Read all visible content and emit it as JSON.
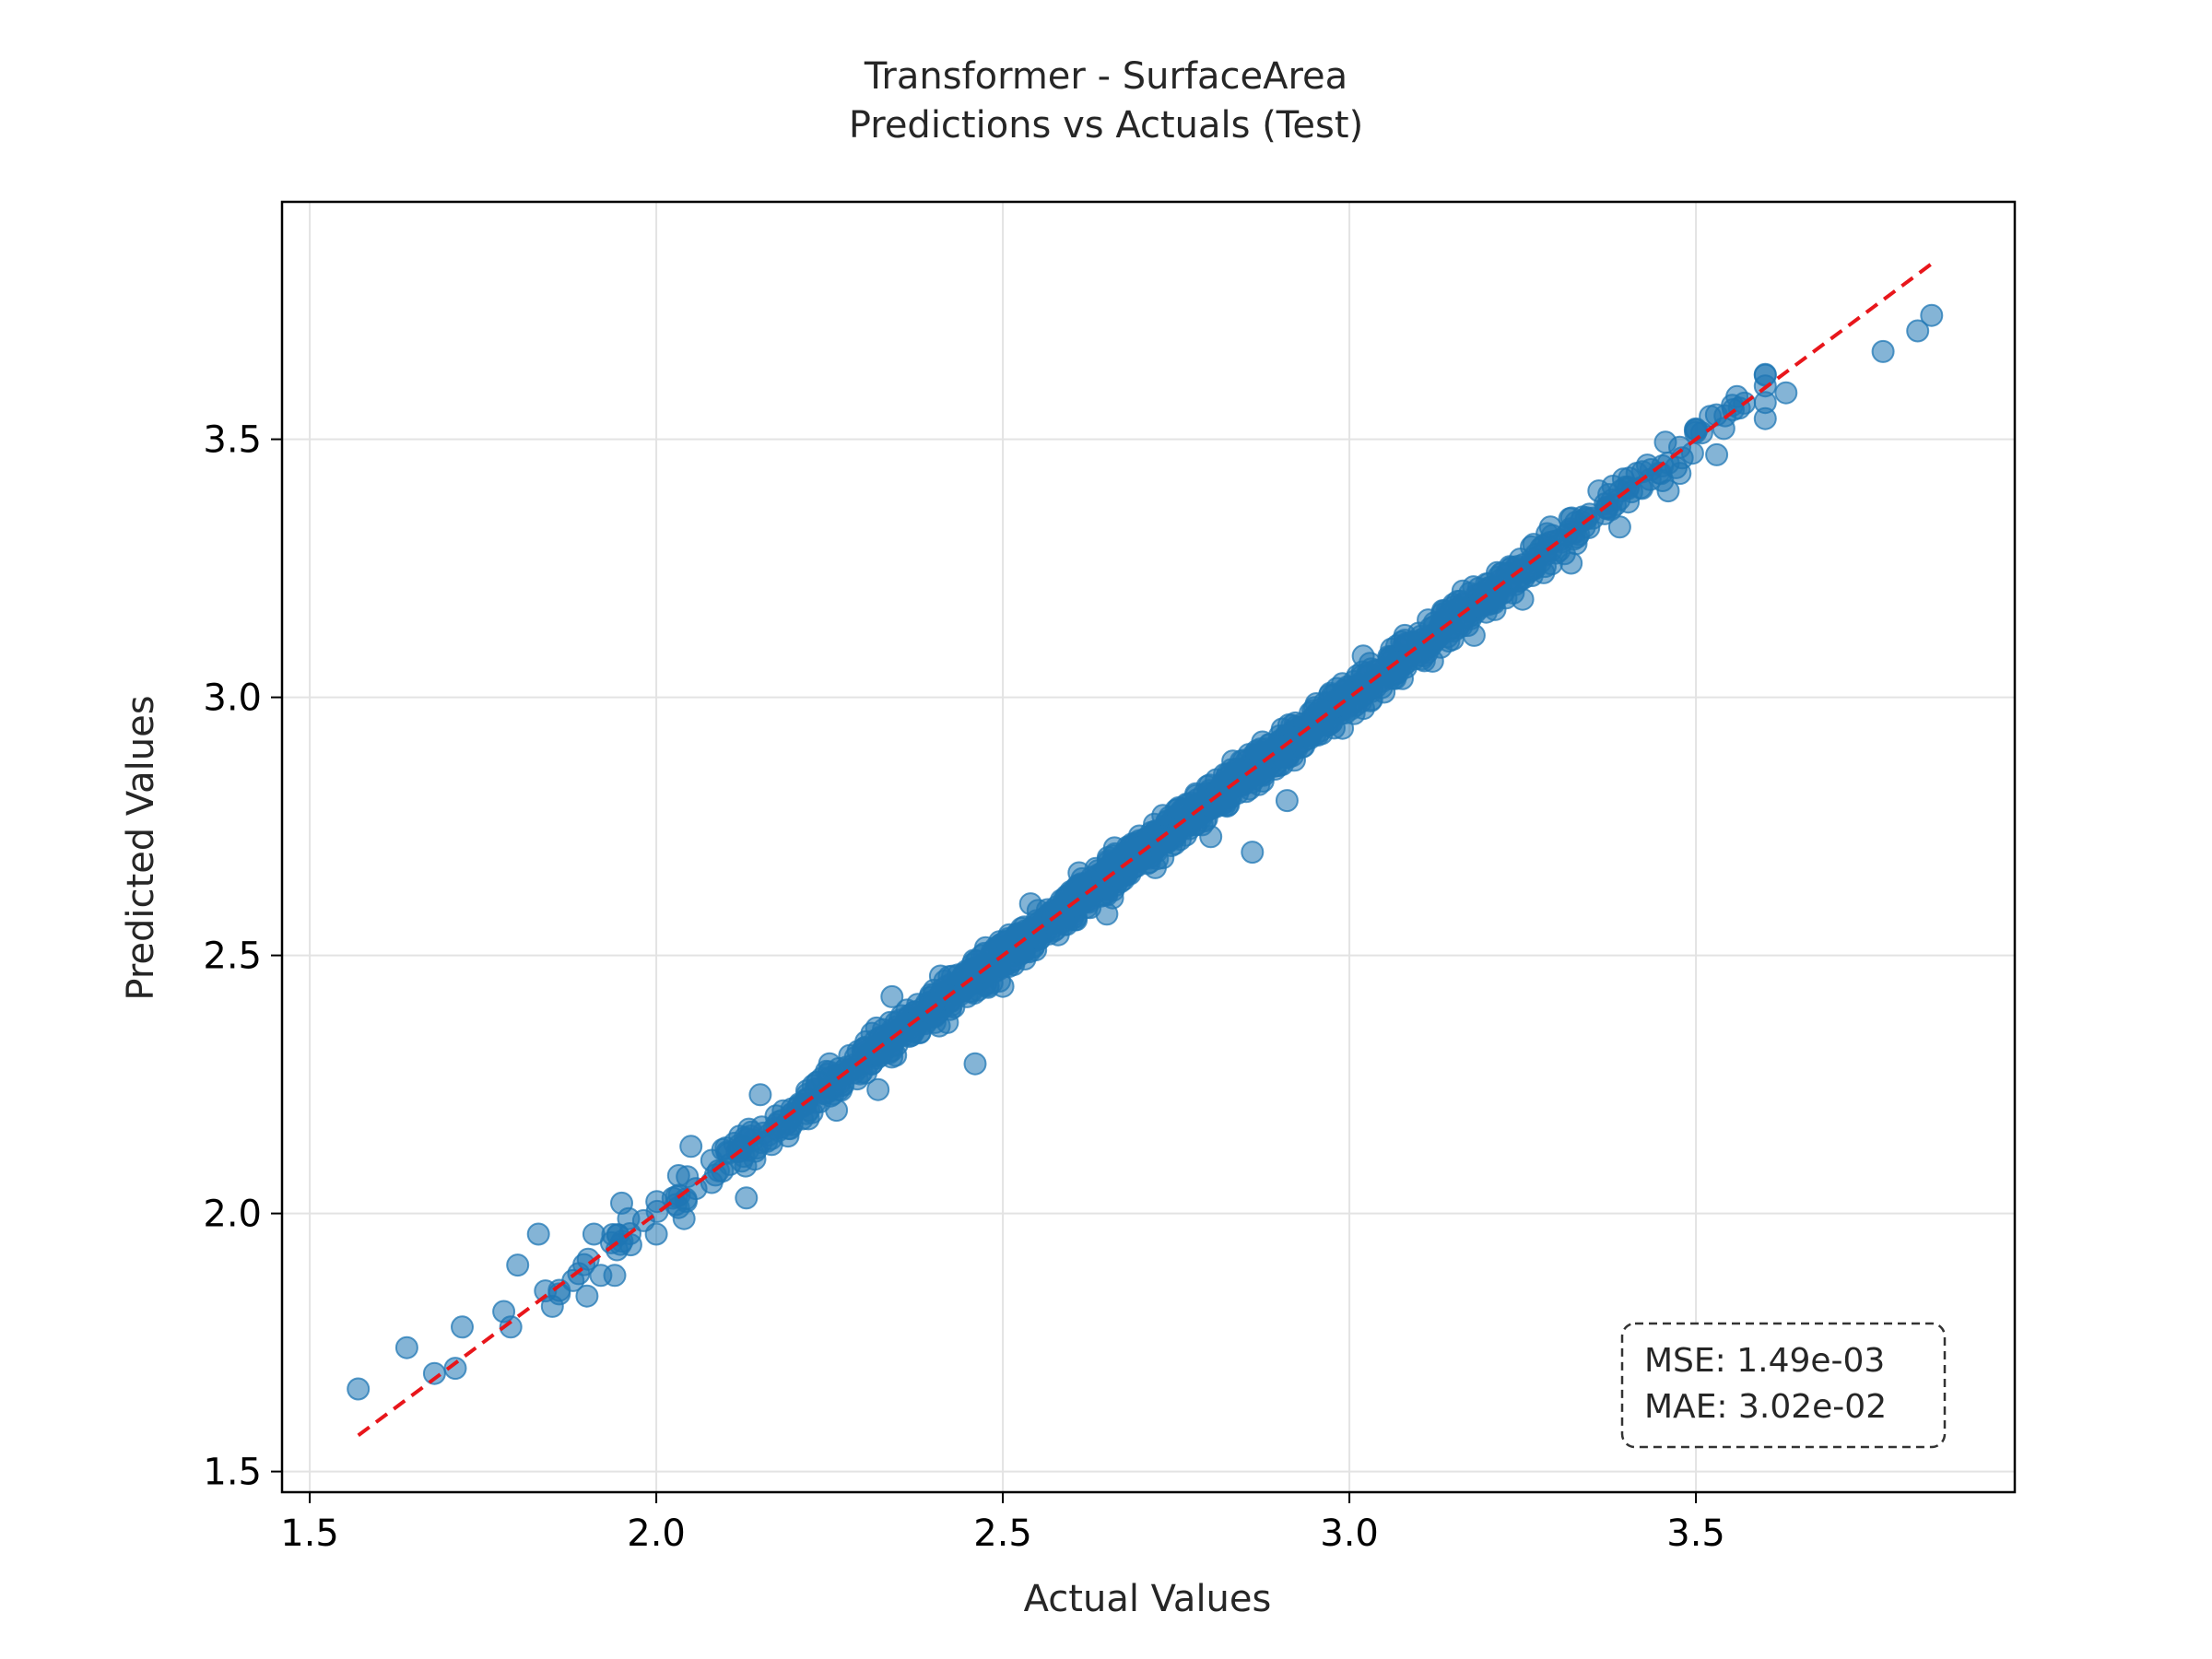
{
  "chart_data": {
    "type": "scatter",
    "title": "Transformer - SurfaceArea",
    "subtitle": "Predictions vs Actuals (Test)",
    "xlabel": "Actual Values",
    "ylabel": "Predicted Values",
    "xlim": [
      1.46,
      3.96
    ],
    "ylim": [
      1.46,
      3.96
    ],
    "xticks": [
      "1.5",
      "2.0",
      "2.5",
      "3.0",
      "3.5"
    ],
    "yticks": [
      "1.5",
      "2.0",
      "2.5",
      "3.0",
      "3.5"
    ],
    "grid": true,
    "reference_line": {
      "x": [
        1.57,
        3.84
      ],
      "y": [
        1.57,
        3.84
      ],
      "style": "dashed",
      "color": "#e8161b"
    },
    "metrics": {
      "mse": "MSE: 1.49e-03",
      "mae": "MAE: 3.02e-02",
      "placement": "bottom-right"
    },
    "colors": {
      "points": "#1f77b4",
      "reference": "#e8161b"
    },
    "points": [
      [
        1.57,
        1.66
      ],
      [
        1.64,
        1.74
      ],
      [
        1.68,
        1.69
      ],
      [
        1.71,
        1.7
      ],
      [
        1.72,
        1.78
      ],
      [
        1.78,
        1.81
      ],
      [
        1.79,
        1.78
      ],
      [
        1.8,
        1.9
      ],
      [
        1.83,
        1.96
      ],
      [
        1.84,
        1.85
      ],
      [
        1.85,
        1.82
      ],
      [
        1.88,
        1.87
      ],
      [
        1.9,
        1.84
      ],
      [
        1.91,
        1.96
      ],
      [
        1.92,
        1.88
      ],
      [
        1.94,
        1.88
      ],
      [
        1.95,
        2.02
      ],
      [
        1.96,
        1.99
      ],
      [
        2.0,
        1.96
      ],
      [
        2.04,
        1.99
      ],
      [
        2.05,
        2.13
      ],
      [
        2.08,
        2.06
      ],
      [
        2.12,
        2.12
      ],
      [
        2.13,
        2.03
      ],
      [
        2.15,
        2.23
      ],
      [
        2.19,
        2.15
      ],
      [
        2.22,
        2.2
      ],
      [
        2.25,
        2.29
      ],
      [
        2.26,
        2.2
      ],
      [
        2.3,
        2.32
      ],
      [
        2.32,
        2.24
      ],
      [
        2.34,
        2.42
      ],
      [
        2.38,
        2.35
      ],
      [
        2.41,
        2.46
      ],
      [
        2.42,
        2.37
      ],
      [
        2.46,
        2.29
      ],
      [
        2.47,
        2.5
      ],
      [
        2.5,
        2.44
      ],
      [
        2.54,
        2.6
      ],
      [
        2.58,
        2.54
      ],
      [
        2.61,
        2.66
      ],
      [
        2.65,
        2.58
      ],
      [
        2.68,
        2.71
      ],
      [
        2.72,
        2.67
      ],
      [
        2.76,
        2.78
      ],
      [
        2.8,
        2.73
      ],
      [
        2.83,
        2.86
      ],
      [
        2.86,
        2.7
      ],
      [
        2.88,
        2.9
      ],
      [
        2.91,
        2.8
      ],
      [
        2.95,
        2.98
      ],
      [
        2.99,
        2.94
      ],
      [
        3.02,
        3.08
      ],
      [
        3.05,
        3.01
      ],
      [
        3.08,
        3.12
      ],
      [
        3.12,
        3.07
      ],
      [
        3.15,
        3.18
      ],
      [
        3.18,
        3.12
      ],
      [
        3.22,
        3.24
      ],
      [
        3.25,
        3.19
      ],
      [
        3.29,
        3.33
      ],
      [
        3.32,
        3.26
      ],
      [
        3.36,
        3.4
      ],
      [
        3.39,
        3.33
      ],
      [
        3.43,
        3.45
      ],
      [
        3.46,
        3.4
      ],
      [
        3.5,
        3.52
      ],
      [
        3.53,
        3.47
      ],
      [
        3.57,
        3.57
      ],
      [
        3.6,
        3.54
      ],
      [
        3.63,
        3.59
      ],
      [
        3.77,
        3.67
      ],
      [
        3.82,
        3.71
      ],
      [
        3.84,
        3.74
      ]
    ]
  }
}
